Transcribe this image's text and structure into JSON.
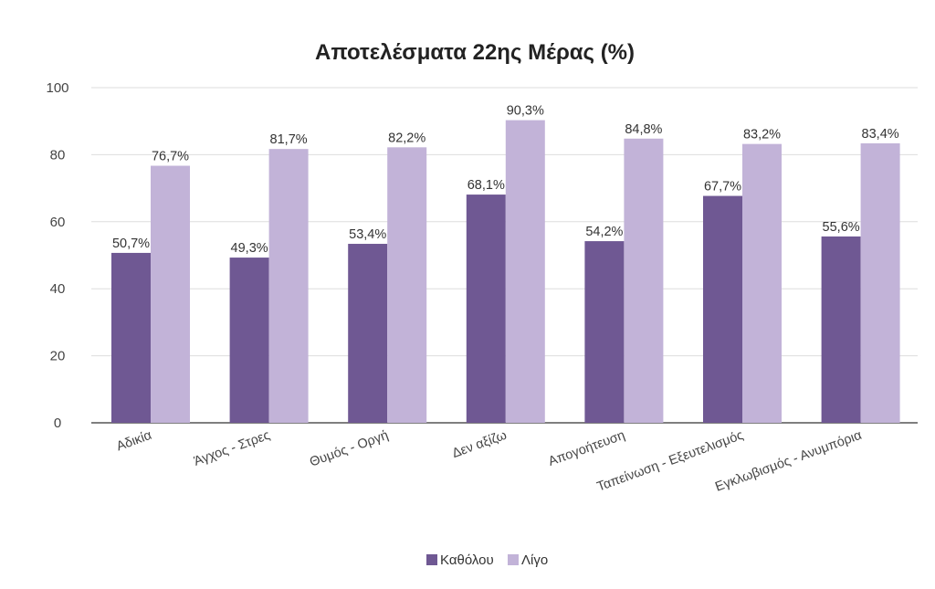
{
  "chart_data": {
    "type": "bar",
    "title": "Αποτελέσματα 22ης Μέρας (%)",
    "xlabel": "",
    "ylabel": "",
    "ylim": [
      0,
      100
    ],
    "yticks": [
      0,
      20,
      40,
      60,
      80,
      100
    ],
    "grid": true,
    "legend_position": "bottom",
    "categories": [
      "Αδικία",
      "Άγχος - Στρες",
      "Θυμός - Οργή",
      "Δεν αξίζω",
      "Απογοήτευση",
      "Ταπείνωση - Εξευτελισμός",
      "Εγκλωβισμός - Ανυμπόρια"
    ],
    "series": [
      {
        "name": "Καθόλου",
        "color": "#6f5893",
        "values": [
          50.7,
          49.3,
          53.4,
          68.1,
          54.2,
          67.7,
          55.6
        ],
        "labels": [
          "50,7%",
          "49,3%",
          "53,4%",
          "68,1%",
          "54,2%",
          "67,7%",
          "55,6%"
        ]
      },
      {
        "name": "Λίγο",
        "color": "#c2b3d8",
        "values": [
          76.7,
          81.7,
          82.2,
          90.3,
          84.8,
          83.2,
          83.4
        ],
        "labels": [
          "76,7%",
          "81,7%",
          "82,2%",
          "90,3%",
          "84,8%",
          "83,2%",
          "83,4%"
        ]
      }
    ]
  }
}
